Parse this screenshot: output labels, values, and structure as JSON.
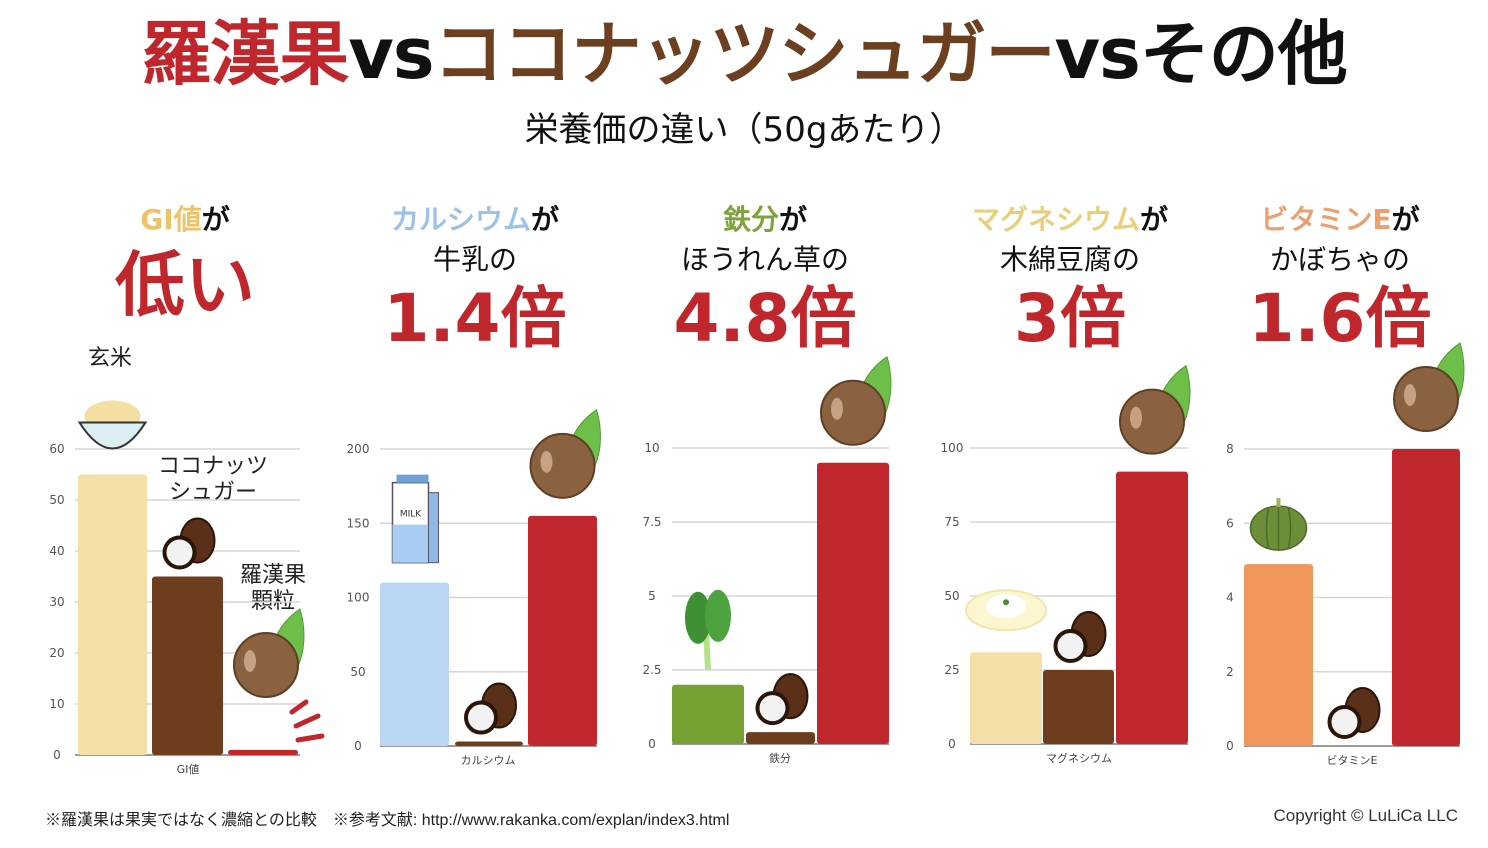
{
  "title": {
    "part1": "羅漢果",
    "vs1": "vs",
    "part2": "ココナッツシュガー",
    "vs2": "vs",
    "part3": "その他",
    "colors": {
      "part1": "#c0272d",
      "vs": "#111111",
      "part2": "#6b3f1f",
      "part3": "#111111"
    }
  },
  "subtitle": "栄養価の違い（50gあたり）",
  "panels": [
    {
      "nutrient": "GI値",
      "suffix": "が",
      "nutrient_color": "#ecc36a",
      "line2": "",
      "headline": "低い"
    },
    {
      "nutrient": "カルシウム",
      "suffix": "が",
      "nutrient_color": "#9fc1e8",
      "line2": "牛乳の",
      "headline": "1.4倍"
    },
    {
      "nutrient": "鉄分",
      "suffix": "が",
      "nutrient_color": "#7ea33a",
      "line2": "ほうれん草の",
      "headline": "4.8倍"
    },
    {
      "nutrient": "マグネシウム",
      "suffix": "が",
      "nutrient_color": "#e8cf7a",
      "line2": "木綿豆腐の",
      "headline": "3倍"
    },
    {
      "nutrient": "ビタミンE",
      "suffix": "が",
      "nutrient_color": "#eba070",
      "line2": "かぼちゃの",
      "headline": "1.6倍"
    }
  ],
  "chart_labels": {
    "brown_rice": "玄米",
    "coconut_sugar_line1": "ココナッツ",
    "coconut_sugar_line2": "シュガー",
    "monk_fruit_line1": "羅漢果",
    "monk_fruit_line2": "顆粒"
  },
  "chart_data": [
    {
      "type": "bar",
      "title": "GI値",
      "xlabel": "GI値",
      "categories": [
        "玄米",
        "ココナッツシュガー",
        "羅漢果顆粒"
      ],
      "values": [
        55,
        35,
        1
      ],
      "colors": [
        "#f5dfa8",
        "#6e3d1e",
        "#c0272d"
      ],
      "yticks": [
        0,
        10,
        20,
        30,
        40,
        50,
        60
      ],
      "ylim": [
        0,
        60
      ],
      "grid": true,
      "icons": [
        "rice-bowl",
        "coconut",
        "monk-fruit"
      ]
    },
    {
      "type": "bar",
      "title": "カルシウム",
      "xlabel": "カルシウム",
      "categories": [
        "牛乳",
        "ココナッツシュガー",
        "羅漢果"
      ],
      "values": [
        110,
        3,
        155
      ],
      "colors": [
        "#b9d7f3",
        "#6e3d1e",
        "#c0272d"
      ],
      "yticks": [
        0,
        50,
        100,
        150,
        200
      ],
      "ylim": [
        0,
        200
      ],
      "grid": true,
      "icons": [
        "milk-carton",
        "coconut",
        "monk-fruit"
      ]
    },
    {
      "type": "bar",
      "title": "鉄分",
      "xlabel": "鉄分",
      "categories": [
        "ほうれん草",
        "ココナッツシュガー",
        "羅漢果"
      ],
      "values": [
        2,
        0.4,
        9.5
      ],
      "colors": [
        "#76a032",
        "#6e3d1e",
        "#c0272d"
      ],
      "yticks": [
        0,
        2.5,
        5,
        7.5,
        10
      ],
      "ylim": [
        0,
        10
      ],
      "grid": true,
      "icons": [
        "spinach",
        "coconut",
        "monk-fruit"
      ]
    },
    {
      "type": "bar",
      "title": "マグネシウム",
      "xlabel": "マグネシウム",
      "categories": [
        "木綿豆腐",
        "ココナッツシュガー",
        "羅漢果"
      ],
      "values": [
        31,
        25,
        92
      ],
      "colors": [
        "#f5dfa8",
        "#6e3d1e",
        "#c0272d"
      ],
      "yticks": [
        0,
        25,
        50,
        75,
        100
      ],
      "ylim": [
        0,
        100
      ],
      "grid": true,
      "icons": [
        "tofu",
        "coconut",
        "monk-fruit"
      ]
    },
    {
      "type": "bar",
      "title": "ビタミンE",
      "xlabel": "ビタミンE",
      "categories": [
        "かぼちゃ",
        "ココナッツシュガー",
        "羅漢果"
      ],
      "values": [
        4.9,
        0,
        8
      ],
      "colors": [
        "#f0965a",
        "#6e3d1e",
        "#c0272d"
      ],
      "yticks": [
        0,
        2,
        4,
        6,
        8
      ],
      "ylim": [
        0,
        8
      ],
      "grid": true,
      "icons": [
        "pumpkin",
        "coconut",
        "monk-fruit"
      ]
    }
  ],
  "footer": {
    "note": "※羅漢果は果実ではなく濃縮との比較　※参考文献: http://www.rakanka.com/explan/index3.html",
    "copyright": "Copyright © LuLiCa LLC"
  }
}
